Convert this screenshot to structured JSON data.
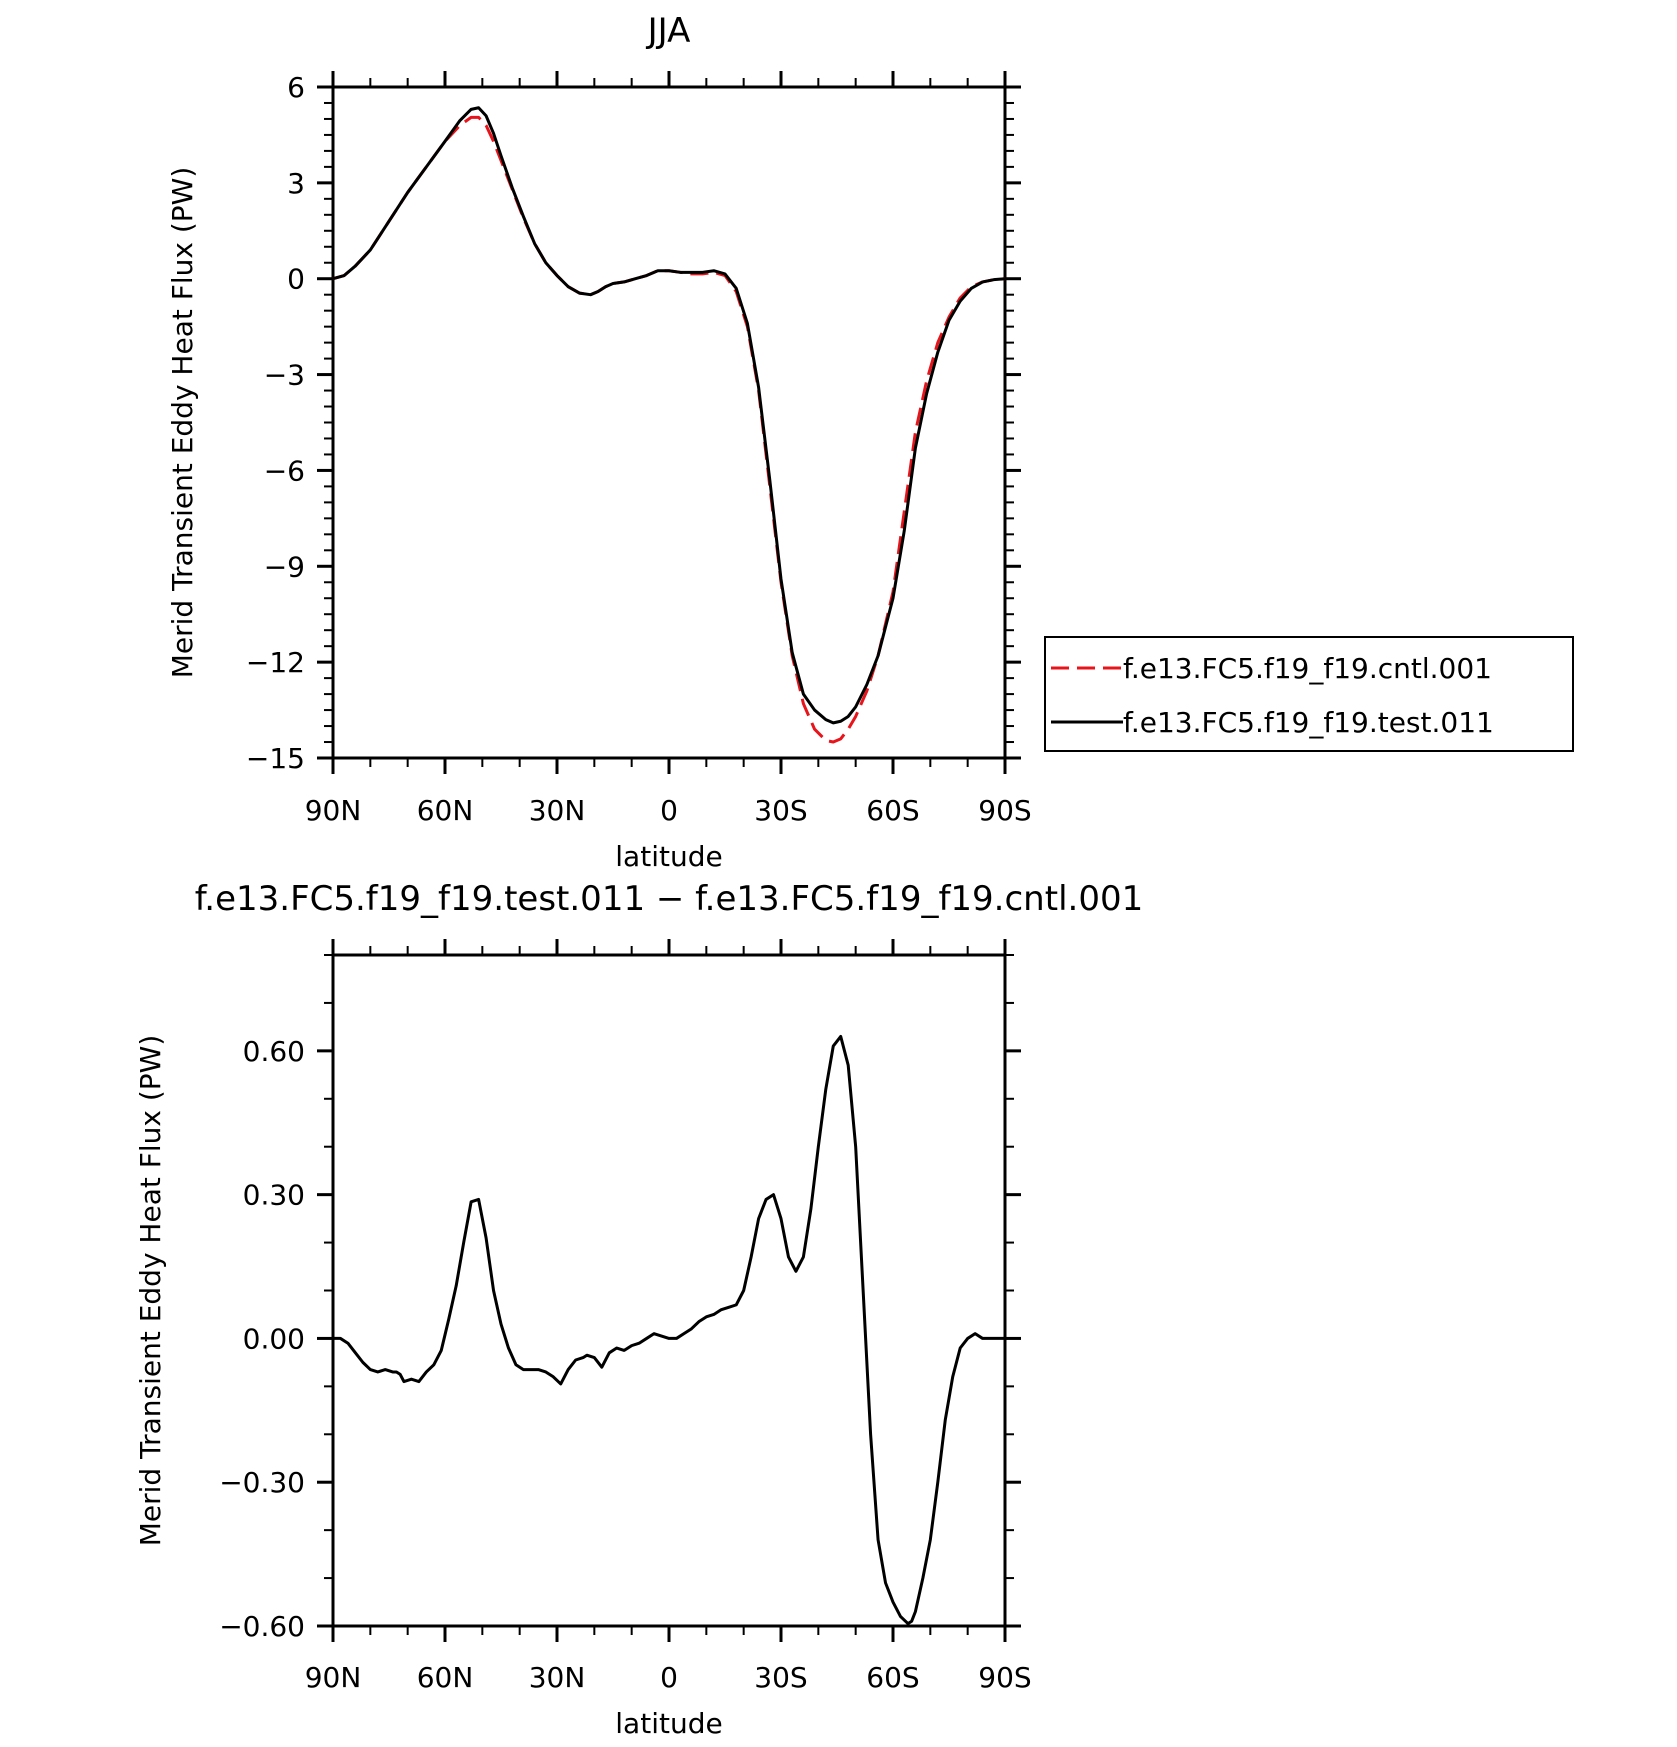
{
  "chart_data": [
    {
      "type": "line",
      "title": "JJA",
      "xlabel": "latitude",
      "ylabel": "Merid Transient Eddy Heat Flux (PW)",
      "xlim": [
        90,
        -90
      ],
      "ylim": [
        -15,
        6
      ],
      "x_ticks": [
        {
          "value": 90,
          "label": "90N"
        },
        {
          "value": 60,
          "label": "60N"
        },
        {
          "value": 30,
          "label": "30N"
        },
        {
          "value": 0,
          "label": "0"
        },
        {
          "value": -30,
          "label": "30S"
        },
        {
          "value": -60,
          "label": "60S"
        },
        {
          "value": -90,
          "label": "90S"
        }
      ],
      "y_ticks": [
        {
          "value": 6,
          "label": "6"
        },
        {
          "value": 3,
          "label": "3"
        },
        {
          "value": 0,
          "label": "0"
        },
        {
          "value": -3,
          "label": "−3"
        },
        {
          "value": -6,
          "label": "−6"
        },
        {
          "value": -9,
          "label": "−9"
        },
        {
          "value": -12,
          "label": "−12"
        },
        {
          "value": -15,
          "label": "−15"
        }
      ],
      "legend_position": "right",
      "series": [
        {
          "name": "f.e13.FC5.f19_f19.cntl.001",
          "color": "#e8141b",
          "style": "dashed",
          "x": [
            90,
            87,
            84,
            80,
            75,
            70,
            65,
            60,
            56,
            53,
            51,
            49,
            47,
            45,
            42,
            39,
            36,
            33,
            30,
            27,
            24,
            21,
            19,
            17,
            15,
            12,
            9,
            6,
            3,
            0,
            -3,
            -6,
            -9,
            -12,
            -15,
            -18,
            -21,
            -24,
            -27,
            -30,
            -33,
            -36,
            -39,
            -42,
            -44,
            -46,
            -48,
            -50,
            -53,
            -56,
            -60,
            -63,
            -66,
            -69,
            -72,
            -75,
            -78,
            -81,
            -84,
            -87,
            -90
          ],
          "y": [
            0,
            0.1,
            0.4,
            0.9,
            1.8,
            2.7,
            3.5,
            4.3,
            4.8,
            5.05,
            5.05,
            4.8,
            4.3,
            3.7,
            2.8,
            1.9,
            1.1,
            0.5,
            0.1,
            -0.25,
            -0.45,
            -0.5,
            -0.4,
            -0.25,
            -0.15,
            -0.1,
            0,
            0.1,
            0.25,
            0.25,
            0.2,
            0.15,
            0.15,
            0.2,
            0.1,
            -0.4,
            -1.5,
            -3.5,
            -6.5,
            -9.5,
            -11.8,
            -13.3,
            -14.1,
            -14.45,
            -14.5,
            -14.4,
            -14.1,
            -13.7,
            -12.9,
            -11.8,
            -9.8,
            -7.3,
            -4.8,
            -3.2,
            -2.0,
            -1.2,
            -0.6,
            -0.25,
            -0.1,
            -0.03,
            0
          ]
        },
        {
          "name": "f.e13.FC5.f19_f19.test.011",
          "color": "#000000",
          "style": "solid",
          "x": [
            90,
            87,
            84,
            80,
            75,
            70,
            65,
            60,
            56,
            53,
            51,
            49,
            47,
            45,
            42,
            39,
            36,
            33,
            30,
            27,
            24,
            21,
            19,
            17,
            15,
            12,
            9,
            6,
            3,
            0,
            -3,
            -6,
            -9,
            -12,
            -15,
            -18,
            -21,
            -24,
            -27,
            -30,
            -33,
            -36,
            -39,
            -42,
            -44,
            -46,
            -48,
            -50,
            -53,
            -56,
            -60,
            -63,
            -66,
            -69,
            -72,
            -75,
            -78,
            -81,
            -84,
            -87,
            -90
          ],
          "y": [
            0,
            0.1,
            0.4,
            0.9,
            1.8,
            2.7,
            3.5,
            4.3,
            4.95,
            5.3,
            5.35,
            5.1,
            4.55,
            3.85,
            2.85,
            1.95,
            1.1,
            0.5,
            0.1,
            -0.25,
            -0.45,
            -0.5,
            -0.4,
            -0.25,
            -0.15,
            -0.1,
            0,
            0.1,
            0.25,
            0.25,
            0.2,
            0.2,
            0.2,
            0.25,
            0.15,
            -0.3,
            -1.4,
            -3.4,
            -6.3,
            -9.4,
            -11.7,
            -13.0,
            -13.5,
            -13.8,
            -13.9,
            -13.85,
            -13.7,
            -13.4,
            -12.7,
            -11.8,
            -10.0,
            -7.9,
            -5.3,
            -3.6,
            -2.3,
            -1.3,
            -0.7,
            -0.3,
            -0.1,
            -0.03,
            0
          ]
        }
      ]
    },
    {
      "type": "line",
      "title": "f.e13.FC5.f19_f19.test.011 − f.e13.FC5.f19_f19.cntl.001",
      "xlabel": "latitude",
      "ylabel": "Merid Transient Eddy Heat Flux (PW)",
      "xlim": [
        90,
        -90
      ],
      "ylim": [
        -0.6,
        0.8
      ],
      "x_ticks": [
        {
          "value": 90,
          "label": "90N"
        },
        {
          "value": 60,
          "label": "60N"
        },
        {
          "value": 30,
          "label": "30N"
        },
        {
          "value": 0,
          "label": "0"
        },
        {
          "value": -30,
          "label": "30S"
        },
        {
          "value": -60,
          "label": "60S"
        },
        {
          "value": -90,
          "label": "90S"
        }
      ],
      "y_ticks": [
        {
          "value": 0.6,
          "label": "0.60"
        },
        {
          "value": 0.3,
          "label": "0.30"
        },
        {
          "value": 0,
          "label": "0.00"
        },
        {
          "value": -0.3,
          "label": "−0.30"
        },
        {
          "value": -0.6,
          "label": "−0.60"
        }
      ],
      "series": [
        {
          "color": "#000000",
          "style": "solid",
          "x": [
            90,
            88,
            86,
            84,
            82,
            80,
            78,
            76,
            74,
            73,
            72,
            71,
            69,
            67,
            65,
            63,
            61,
            59,
            57,
            55,
            53,
            51,
            49,
            47,
            45,
            43,
            41,
            39,
            37,
            35,
            33,
            31,
            29,
            27,
            25,
            23,
            22,
            20,
            18,
            16,
            14,
            12,
            10,
            8,
            6,
            4,
            2,
            0,
            -2,
            -4,
            -6,
            -8,
            -10,
            -12,
            -14,
            -16,
            -18,
            -20,
            -22,
            -24,
            -26,
            -28,
            -30,
            -32,
            -34,
            -36,
            -38,
            -40,
            -42,
            -44,
            -46,
            -47,
            -48,
            -50,
            -52,
            -54,
            -56,
            -58,
            -60,
            -62,
            -64,
            -65,
            -66,
            -68,
            -70,
            -72,
            -74,
            -76,
            -78,
            -80,
            -82,
            -84,
            -86,
            -88,
            -90
          ],
          "y": [
            0.0,
            0.0,
            -0.01,
            -0.03,
            -0.05,
            -0.065,
            -0.07,
            -0.065,
            -0.07,
            -0.07,
            -0.075,
            -0.09,
            -0.085,
            -0.09,
            -0.07,
            -0.055,
            -0.025,
            0.04,
            0.11,
            0.2,
            0.285,
            0.29,
            0.21,
            0.1,
            0.03,
            -0.02,
            -0.055,
            -0.065,
            -0.065,
            -0.065,
            -0.07,
            -0.08,
            -0.095,
            -0.065,
            -0.045,
            -0.04,
            -0.035,
            -0.04,
            -0.06,
            -0.03,
            -0.02,
            -0.025,
            -0.015,
            -0.01,
            0.0,
            0.01,
            0.005,
            0.0,
            0.0,
            0.01,
            0.02,
            0.035,
            0.045,
            0.05,
            0.06,
            0.065,
            0.07,
            0.1,
            0.17,
            0.25,
            0.29,
            0.3,
            0.25,
            0.17,
            0.14,
            0.17,
            0.27,
            0.4,
            0.52,
            0.61,
            0.63,
            0.6,
            0.57,
            0.4,
            0.1,
            -0.2,
            -0.42,
            -0.51,
            -0.55,
            -0.58,
            -0.595,
            -0.59,
            -0.57,
            -0.5,
            -0.42,
            -0.3,
            -0.17,
            -0.08,
            -0.02,
            0.0,
            0.01,
            0.0,
            0.0,
            0.0,
            0.0
          ]
        }
      ]
    }
  ]
}
